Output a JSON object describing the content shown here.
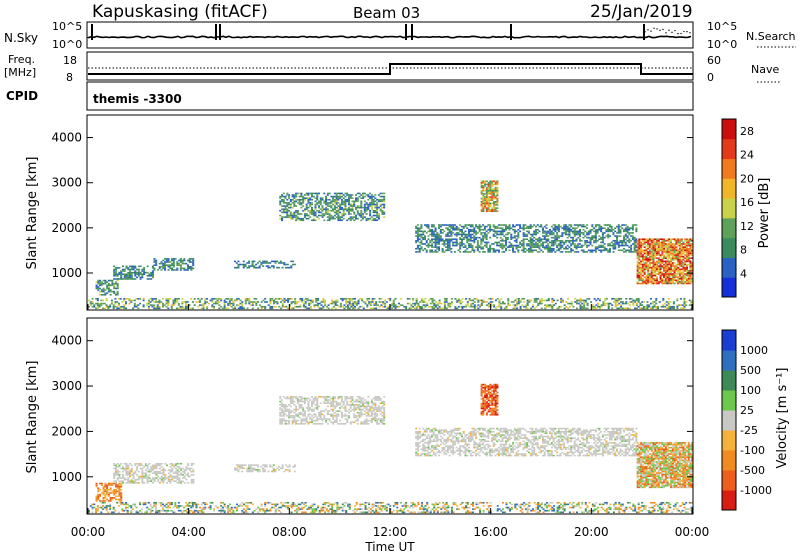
{
  "header": {
    "station": "Kapuskasing (fitACF)",
    "beam": "Beam 03",
    "date": "25/Jan/2019"
  },
  "panels": {
    "nsky": {
      "label": "N.Sky",
      "left_ticks": [
        "10^5",
        "10^0"
      ],
      "right_ticks": [
        "10^5",
        "10^0"
      ],
      "right_label": "N.Search"
    },
    "freq": {
      "label_line1": "Freq.",
      "label_line2": "[MHz]",
      "left_ticks": [
        "18",
        "8"
      ],
      "right_ticks": [
        "60",
        "0"
      ],
      "right_label": "Nave"
    },
    "cpid": {
      "label": "CPID",
      "text": "themis -3300"
    }
  },
  "colors": {
    "power": [
      "#1530d8",
      "#2a62c4",
      "#3a8c5e",
      "#5fa05a",
      "#c8d24a",
      "#f1b52a",
      "#f07a1e",
      "#e23a1a",
      "#cc0d0d"
    ],
    "velocity": [
      "#1a3dd2",
      "#2f6fbf",
      "#3d8a58",
      "#6cc84a",
      "#c8c8c4",
      "#f4b23a",
      "#f08b22",
      "#eb5e1c",
      "#d81d12"
    ],
    "gray": "#c8c8c4"
  },
  "chart_data": [
    {
      "type": "heatmap",
      "title": "Power",
      "xlabel": "Time UT",
      "ylabel": "Slant Range [km]",
      "x_ticks": [
        "00:00",
        "04:00",
        "08:00",
        "12:00",
        "16:00",
        "20:00",
        "00:00"
      ],
      "y_ticks": [
        "1000",
        "2000",
        "3000",
        "4000"
      ],
      "ylim": [
        180,
        4500
      ],
      "colorbar": {
        "label": "Power [dB]",
        "ticks": [
          "4",
          "8",
          "12",
          "16",
          "20",
          "24",
          "28"
        ],
        "range": [
          0,
          30
        ]
      },
      "regions": [
        {
          "t0": 0.0,
          "t1": 24.0,
          "r0": 200,
          "r1": 420,
          "v": [
            4,
            18
          ],
          "density": 0.45
        },
        {
          "t0": 0.3,
          "t1": 1.2,
          "r0": 500,
          "r1": 820,
          "v": [
            4,
            14
          ],
          "density": 0.6
        },
        {
          "t0": 1.0,
          "t1": 2.6,
          "r0": 850,
          "r1": 1150,
          "v": [
            4,
            12
          ],
          "density": 0.6
        },
        {
          "t0": 2.6,
          "t1": 4.2,
          "r0": 1050,
          "r1": 1300,
          "v": [
            4,
            12
          ],
          "density": 0.55
        },
        {
          "t0": 5.8,
          "t1": 8.2,
          "r0": 1100,
          "r1": 1250,
          "v": [
            4,
            10
          ],
          "density": 0.45
        },
        {
          "t0": 7.6,
          "t1": 11.8,
          "r0": 2150,
          "r1": 2750,
          "v": [
            4,
            14
          ],
          "density": 0.55
        },
        {
          "t0": 13.0,
          "t1": 21.8,
          "r0": 1450,
          "r1": 2050,
          "v": [
            4,
            12
          ],
          "density": 0.55
        },
        {
          "t0": 15.6,
          "t1": 16.3,
          "r0": 2350,
          "r1": 3050,
          "v": [
            8,
            26
          ],
          "density": 0.8
        },
        {
          "t0": 21.8,
          "t1": 24.0,
          "r0": 750,
          "r1": 1750,
          "v": [
            12,
            30
          ],
          "density": 0.85
        }
      ]
    },
    {
      "type": "heatmap",
      "title": "Velocity",
      "xlabel": "Time UT",
      "ylabel": "Slant Range [km]",
      "x_ticks": [
        "00:00",
        "04:00",
        "08:00",
        "12:00",
        "16:00",
        "20:00",
        "00:00"
      ],
      "y_ticks": [
        "1000",
        "2000",
        "3000",
        "4000"
      ],
      "ylim": [
        180,
        4500
      ],
      "colorbar": {
        "label": "Velocity [m s⁻¹]",
        "ticks": [
          "1000",
          "500",
          "100",
          "25",
          "-25",
          "-100",
          "-500",
          "-1000"
        ]
      },
      "regions": [
        {
          "t0": 0.0,
          "t1": 24.0,
          "r0": 200,
          "r1": 420,
          "kind": "mixed",
          "density": 0.4
        },
        {
          "t0": 0.3,
          "t1": 1.3,
          "r0": 450,
          "r1": 850,
          "kind": "orange",
          "density": 0.6
        },
        {
          "t0": 1.0,
          "t1": 4.2,
          "r0": 850,
          "r1": 1300,
          "kind": "gray",
          "density": 0.55
        },
        {
          "t0": 5.8,
          "t1": 8.2,
          "r0": 1100,
          "r1": 1250,
          "kind": "gray",
          "density": 0.45
        },
        {
          "t0": 7.6,
          "t1": 11.8,
          "r0": 2150,
          "r1": 2750,
          "kind": "gray",
          "density": 0.55
        },
        {
          "t0": 13.0,
          "t1": 21.8,
          "r0": 1450,
          "r1": 2050,
          "kind": "gray",
          "density": 0.55
        },
        {
          "t0": 15.6,
          "t1": 16.3,
          "r0": 2350,
          "r1": 3050,
          "kind": "red",
          "density": 0.8
        },
        {
          "t0": 21.8,
          "t1": 24.0,
          "r0": 750,
          "r1": 1750,
          "kind": "late",
          "density": 0.85
        }
      ]
    }
  ]
}
